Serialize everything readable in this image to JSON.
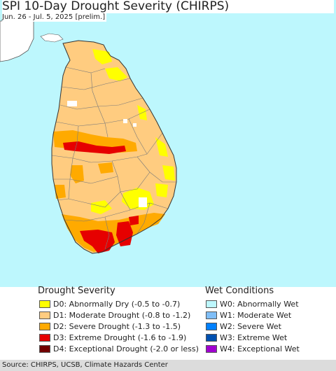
{
  "header": {
    "title": "SPI 10-Day Drought Severity (CHIRPS)",
    "subtitle": "Jun. 26 - Jul. 5, 2025 [prelim.]"
  },
  "map": {
    "ocean_color": "#bdf7fd",
    "land_color": "#ffcc80",
    "neighbor_land_color": "#ffffff",
    "boundary_color": "#7a7a7a"
  },
  "legend": {
    "drought": {
      "heading": "Drought Severity",
      "items": [
        {
          "code": "D0",
          "label": "D0: Abnormally Dry (-0.5 to -0.7)",
          "color": "#ffff00"
        },
        {
          "code": "D1",
          "label": "D1: Moderate Drought (-0.8 to -1.2)",
          "color": "#ffcc80"
        },
        {
          "code": "D2",
          "label": "D2: Severe Drought (-1.3 to -1.5)",
          "color": "#ffaa00"
        },
        {
          "code": "D3",
          "label": "D3: Extreme Drought (-1.6 to -1.9)",
          "color": "#e60000"
        },
        {
          "code": "D4",
          "label": "D4: Exceptional Drought (-2.0 or less)",
          "color": "#730000"
        }
      ]
    },
    "wet": {
      "heading": "Wet Conditions",
      "items": [
        {
          "code": "W0",
          "label": "W0: Abnormally Wet",
          "color": "#bdf7fd"
        },
        {
          "code": "W1",
          "label": "W1: Moderate Wet",
          "color": "#7fbef7"
        },
        {
          "code": "W2",
          "label": "W2: Severe Wet",
          "color": "#0080ff"
        },
        {
          "code": "W3",
          "label": "W3: Extreme Wet",
          "color": "#0050b0"
        },
        {
          "code": "W4",
          "label": "W4: Exceptional Wet",
          "color": "#a000d0"
        }
      ]
    }
  },
  "footer": {
    "source": "Source: CHIRPS, UCSB, Climate Hazards Center"
  }
}
